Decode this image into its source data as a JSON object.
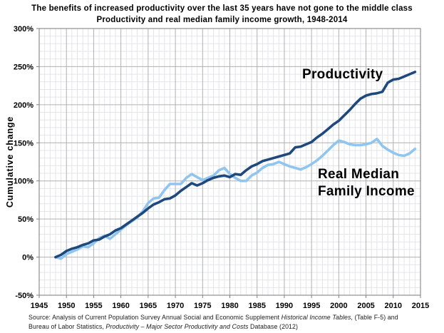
{
  "chart_data": {
    "type": "line",
    "title": "The benefits of increased productivity over the last 35 years have not gone to the middle class",
    "subtitle": "Productivity and real median family income growth, 1948-2014",
    "ylabel": "Cumulative change",
    "xlabel": "",
    "xlim": [
      1945,
      2015
    ],
    "ylim": [
      -50,
      300
    ],
    "grid": {
      "minor_x_step_years": 1,
      "minor_y_step_pct": 10,
      "major_x_step_years": 5,
      "major_y_step_pct": 50
    },
    "legend_position": "in-plot text annotations",
    "x_ticks": [
      {
        "v": 1945,
        "label": "1945"
      },
      {
        "v": 1950,
        "label": "1950"
      },
      {
        "v": 1955,
        "label": "1955"
      },
      {
        "v": 1960,
        "label": "1960"
      },
      {
        "v": 1965,
        "label": "1965"
      },
      {
        "v": 1970,
        "label": "1970"
      },
      {
        "v": 1975,
        "label": "1975"
      },
      {
        "v": 1980,
        "label": "1980"
      },
      {
        "v": 1985,
        "label": "1985"
      },
      {
        "v": 1990,
        "label": "1990"
      },
      {
        "v": 1995,
        "label": "1995"
      },
      {
        "v": 2000,
        "label": "2000"
      },
      {
        "v": 2005,
        "label": "2005"
      },
      {
        "v": 2010,
        "label": "2010"
      },
      {
        "v": 2015,
        "label": "2015"
      }
    ],
    "y_ticks": [
      {
        "v": -50,
        "label": "-50%"
      },
      {
        "v": 0,
        "label": "0%"
      },
      {
        "v": 50,
        "label": "50%"
      },
      {
        "v": 100,
        "label": "100%"
      },
      {
        "v": 150,
        "label": "150%"
      },
      {
        "v": 200,
        "label": "200%"
      },
      {
        "v": 250,
        "label": "250%"
      },
      {
        "v": 300,
        "label": "300%"
      }
    ],
    "years": [
      1948,
      1949,
      1950,
      1951,
      1952,
      1953,
      1954,
      1955,
      1956,
      1957,
      1958,
      1959,
      1960,
      1961,
      1962,
      1963,
      1964,
      1965,
      1966,
      1967,
      1968,
      1969,
      1970,
      1971,
      1972,
      1973,
      1974,
      1975,
      1976,
      1977,
      1978,
      1979,
      1980,
      1981,
      1982,
      1983,
      1984,
      1985,
      1986,
      1987,
      1988,
      1989,
      1990,
      1991,
      1992,
      1993,
      1994,
      1995,
      1996,
      1997,
      1998,
      1999,
      2000,
      2001,
      2002,
      2003,
      2004,
      2005,
      2006,
      2007,
      2008,
      2009,
      2010,
      2011,
      2012,
      2013,
      2014
    ],
    "series": [
      {
        "name": "Productivity",
        "color": "#1F497D",
        "stroke_width": 3.6,
        "values": [
          0,
          3,
          8,
          11,
          13,
          16,
          18,
          22,
          23,
          27,
          30,
          35,
          38,
          43,
          48,
          53,
          58,
          64,
          69,
          72,
          76,
          77,
          81,
          87,
          92,
          97,
          94,
          97,
          101,
          104,
          106,
          107,
          105,
          109,
          108,
          114,
          119,
          122,
          126,
          128,
          130,
          132,
          134,
          136,
          144,
          145,
          148,
          151,
          157,
          162,
          168,
          174,
          179,
          186,
          193,
          201,
          208,
          212,
          214,
          215,
          217,
          229,
          233,
          234,
          237,
          240,
          243
        ]
      },
      {
        "name": "Real Median Family Income",
        "color": "#8FC5EF",
        "stroke_width": 3.6,
        "values": [
          0,
          -2,
          4,
          7,
          10,
          14,
          13,
          18,
          25,
          28,
          24,
          30,
          36,
          42,
          47,
          52,
          60,
          71,
          77,
          78,
          88,
          96,
          96,
          96,
          104,
          109,
          105,
          101,
          104,
          107,
          114,
          117,
          109,
          104,
          100,
          100,
          107,
          111,
          117,
          121,
          122,
          125,
          122,
          119,
          117,
          115,
          118,
          122,
          127,
          133,
          140,
          147,
          153,
          151,
          148,
          147,
          147,
          148,
          150,
          155,
          146,
          141,
          137,
          134,
          133,
          136,
          142
        ]
      }
    ],
    "annotations": [
      {
        "id": "productivity",
        "lines": [
          "Productivity"
        ]
      },
      {
        "id": "median",
        "lines": [
          "Real Median",
          "Family Income"
        ]
      }
    ],
    "colors": {
      "minor_grid": "#E2E5E8",
      "major_grid": "#B0B0B0",
      "frame": "#909090",
      "tick": "#808080",
      "text": "#000000"
    }
  },
  "source": {
    "lines": [
      [
        {
          "text": "Source:  Analysis of Current Population Survey Annual Social and Economic Supplement ",
          "italic": false
        },
        {
          "text": "Historical Income Tables,",
          "italic": true
        },
        {
          "text": " (Table F-5) and",
          "italic": false
        }
      ],
      [
        {
          "text": "Bureau of Labor Statistics, ",
          "italic": false
        },
        {
          "text": "Productivity – Major Sector Productivity and Costs",
          "italic": true
        },
        {
          "text": " Database (2012)",
          "italic": false
        }
      ]
    ]
  }
}
